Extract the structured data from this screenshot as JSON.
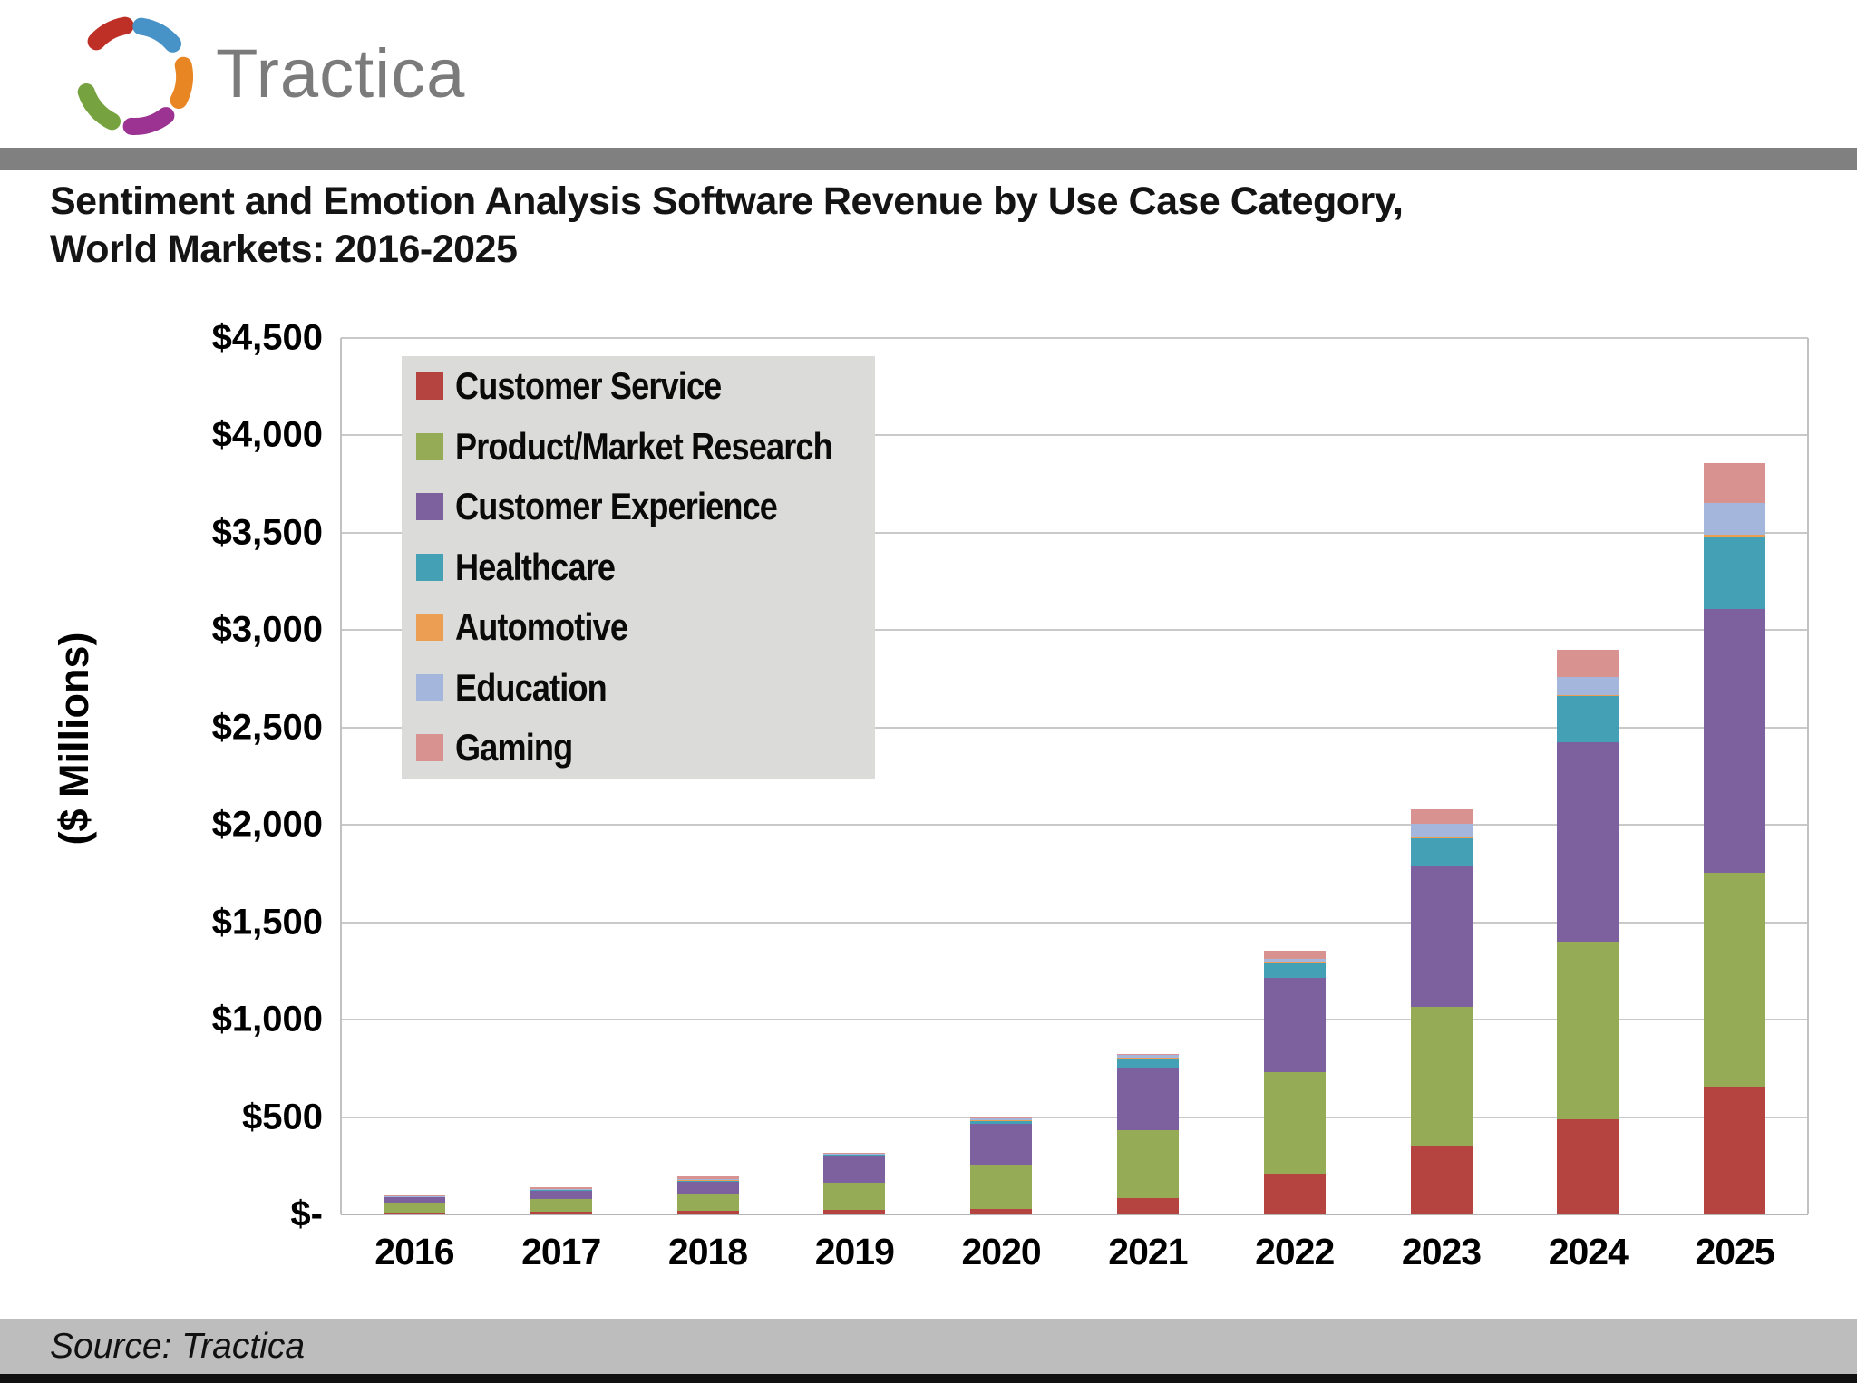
{
  "header": {
    "logo_text": "Tractica"
  },
  "title": {
    "line1": "Sentiment and Emotion Analysis Software Revenue by Use Case Category,",
    "line2": "World Markets: 2016-2025"
  },
  "footer": {
    "source": "Source: Tractica"
  },
  "colors": {
    "top_band": "#808080",
    "legend_bg": "#dbdbd9",
    "gridline": "#c9c9c9",
    "source_band": "#bdbdbd",
    "bottom_bar": "#101010",
    "logo_text": "#7b7b7b",
    "logo_petals": [
      "#be2f26",
      "#4792c6",
      "#e98624",
      "#9c3393",
      "#77a240"
    ]
  },
  "chart_data": {
    "type": "bar",
    "stacked": true,
    "title": "Sentiment and Emotion Analysis Software Revenue by Use Case Category, World Markets: 2016-2025",
    "xlabel": "",
    "ylabel": "($ Millions)",
    "ylim": [
      0,
      4500
    ],
    "ytick_step": 500,
    "ytick_labels": [
      "$-",
      "$500",
      "$1,000",
      "$1,500",
      "$2,000",
      "$2,500",
      "$3,000",
      "$3,500",
      "$4,000",
      "$4,500"
    ],
    "grid": true,
    "legend_position": "upper-left-inside",
    "categories": [
      "2016",
      "2017",
      "2018",
      "2019",
      "2020",
      "2021",
      "2022",
      "2023",
      "2024",
      "2025"
    ],
    "series": [
      {
        "name": "Customer Service",
        "color": "#b5433f",
        "values": [
          8,
          12,
          17,
          25,
          30,
          85,
          210,
          350,
          490,
          655
        ]
      },
      {
        "name": "Product/Market Research",
        "color": "#96ab55",
        "values": [
          52,
          67,
          92,
          140,
          224,
          350,
          520,
          715,
          910,
          1100
        ]
      },
      {
        "name": "Customer Experience",
        "color": "#7c619e",
        "values": [
          28,
          44,
          60,
          138,
          210,
          320,
          485,
          720,
          1025,
          1355
        ]
      },
      {
        "name": "Healthcare",
        "color": "#44a0b5",
        "values": [
          3,
          5,
          8,
          6,
          18,
          47,
          75,
          145,
          235,
          370
        ]
      },
      {
        "name": "Automotive",
        "color": "#ec9e52",
        "values": [
          1,
          1,
          2,
          1,
          2,
          2,
          3,
          5,
          8,
          10
        ]
      },
      {
        "name": "Education",
        "color": "#a4b6dc",
        "values": [
          2,
          3,
          4,
          2,
          10,
          16,
          20,
          70,
          92,
          165
        ]
      },
      {
        "name": "Gaming",
        "color": "#d89290",
        "values": [
          6,
          8,
          12,
          3,
          6,
          5,
          42,
          75,
          140,
          205
        ]
      }
    ],
    "totals": [
      100,
      140,
      195,
      315,
      500,
      825,
      1355,
      2080,
      2900,
      3860
    ]
  }
}
